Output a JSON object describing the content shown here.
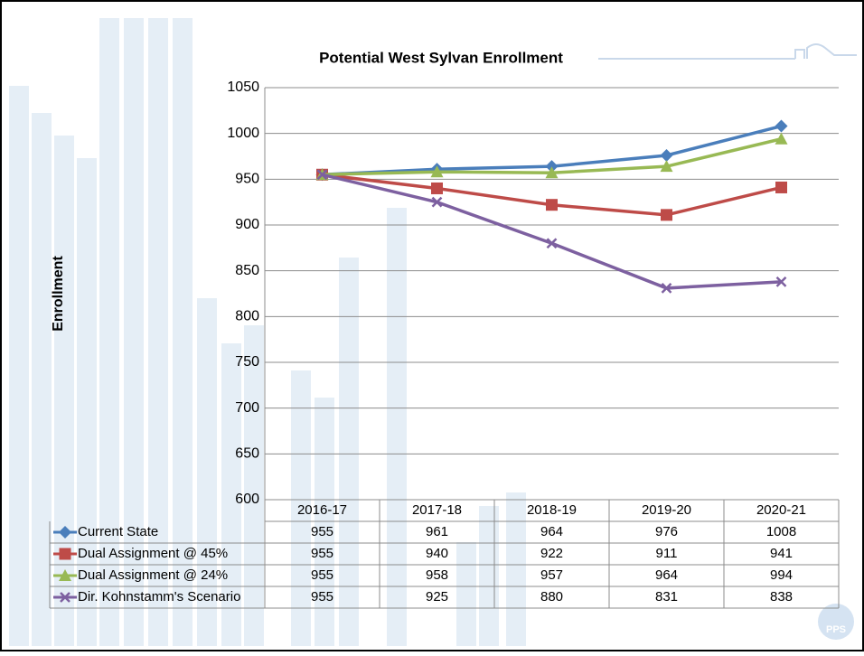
{
  "chart_data": {
    "type": "line",
    "title": "Potential West Sylvan Enrollment",
    "y_label": "Enrollment",
    "categories": [
      "2016-17",
      "2017-18",
      "2018-19",
      "2019-20",
      "2020-21"
    ],
    "series": [
      {
        "name": "Current State",
        "color": "#4a7ebb",
        "marker": "diamond",
        "values": [
          955,
          961,
          964,
          976,
          1008
        ]
      },
      {
        "name": "Dual Assignment @ 45%",
        "color": "#be4b48",
        "marker": "square",
        "values": [
          955,
          940,
          922,
          911,
          941
        ]
      },
      {
        "name": "Dual Assignment @ 24%",
        "color": "#98b954",
        "marker": "triangle",
        "values": [
          955,
          958,
          957,
          964,
          994
        ]
      },
      {
        "name": "Dir. Kohnstamm's Scenario",
        "color": "#7d60a0",
        "marker": "x",
        "values": [
          955,
          925,
          880,
          831,
          838
        ]
      }
    ],
    "ylim": [
      600,
      1050
    ],
    "yticks": [
      600,
      650,
      700,
      750,
      800,
      850,
      900,
      950,
      1000,
      1050
    ],
    "grid": true,
    "data_table": true
  },
  "logo": "PPS"
}
